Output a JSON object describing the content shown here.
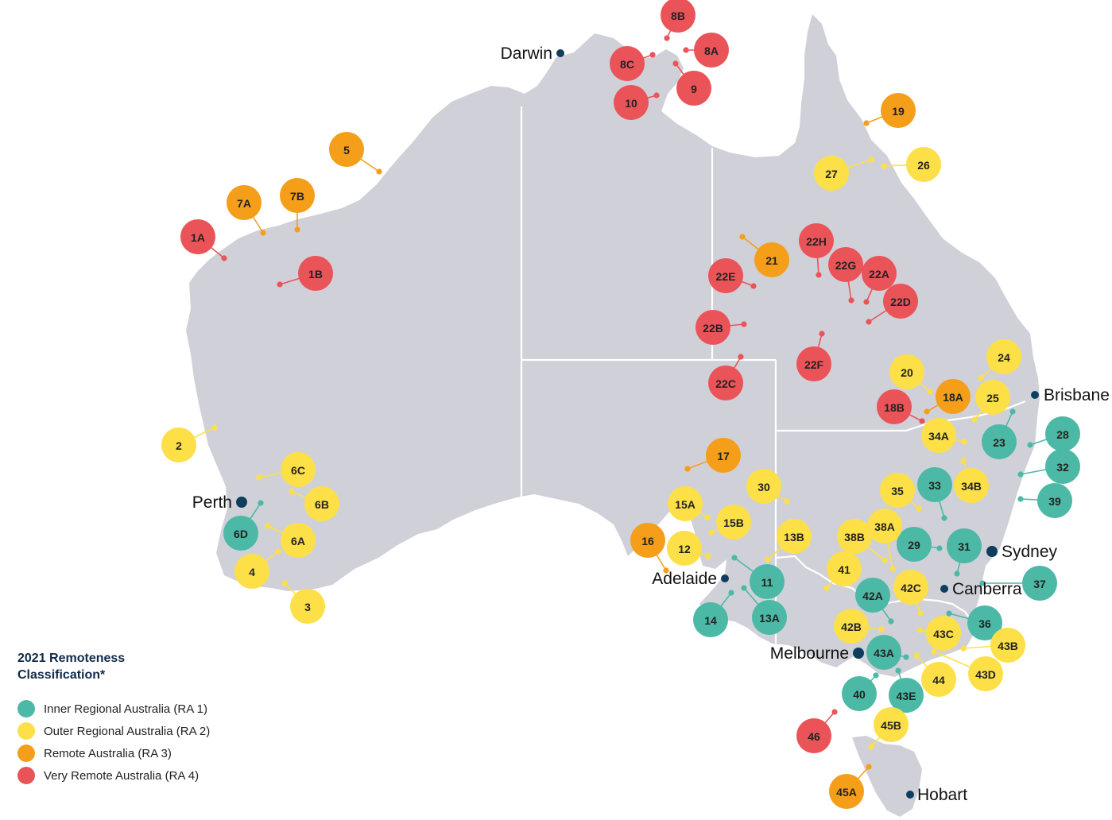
{
  "colors": {
    "ra1": "#4cb9a6",
    "ra2": "#fde047",
    "ra3": "#f59e1a",
    "ra4": "#ea5459",
    "city": "#0f3d5e",
    "land": "#d0d0d8"
  },
  "legend": {
    "title_line1": "2021 Remoteness",
    "title_line2": "Classification*",
    "items": [
      {
        "class": "ra1",
        "label": "Inner Regional Australia (RA 1)"
      },
      {
        "class": "ra2",
        "label": "Outer Regional Australia (RA 2)"
      },
      {
        "class": "ra3",
        "label": "Remote Australia (RA 3)"
      },
      {
        "class": "ra4",
        "label": "Very Remote Australia (RA 4)"
      }
    ]
  },
  "cities": [
    "Darwin",
    "Perth",
    "Adelaide",
    "Brisbane",
    "Sydney",
    "Canberra",
    "Melbourne",
    "Hobart"
  ],
  "sites": [
    {
      "id": "1A",
      "class": "ra4"
    },
    {
      "id": "1B",
      "class": "ra4"
    },
    {
      "id": "2",
      "class": "ra2"
    },
    {
      "id": "3",
      "class": "ra2"
    },
    {
      "id": "4",
      "class": "ra2"
    },
    {
      "id": "5",
      "class": "ra3"
    },
    {
      "id": "6A",
      "class": "ra2"
    },
    {
      "id": "6B",
      "class": "ra2"
    },
    {
      "id": "6C",
      "class": "ra2"
    },
    {
      "id": "6D",
      "class": "ra1"
    },
    {
      "id": "7A",
      "class": "ra3"
    },
    {
      "id": "7B",
      "class": "ra3"
    },
    {
      "id": "8A",
      "class": "ra4"
    },
    {
      "id": "8B",
      "class": "ra4"
    },
    {
      "id": "8C",
      "class": "ra4"
    },
    {
      "id": "9",
      "class": "ra4"
    },
    {
      "id": "10",
      "class": "ra4"
    },
    {
      "id": "11",
      "class": "ra1"
    },
    {
      "id": "12",
      "class": "ra2"
    },
    {
      "id": "13A",
      "class": "ra1"
    },
    {
      "id": "13B",
      "class": "ra2"
    },
    {
      "id": "14",
      "class": "ra1"
    },
    {
      "id": "15A",
      "class": "ra2"
    },
    {
      "id": "15B",
      "class": "ra2"
    },
    {
      "id": "16",
      "class": "ra3"
    },
    {
      "id": "17",
      "class": "ra3"
    },
    {
      "id": "18A",
      "class": "ra3"
    },
    {
      "id": "18B",
      "class": "ra4"
    },
    {
      "id": "19",
      "class": "ra3"
    },
    {
      "id": "20",
      "class": "ra2"
    },
    {
      "id": "21",
      "class": "ra3"
    },
    {
      "id": "22A",
      "class": "ra4"
    },
    {
      "id": "22B",
      "class": "ra4"
    },
    {
      "id": "22C",
      "class": "ra4"
    },
    {
      "id": "22D",
      "class": "ra4"
    },
    {
      "id": "22E",
      "class": "ra4"
    },
    {
      "id": "22F",
      "class": "ra4"
    },
    {
      "id": "22G",
      "class": "ra4"
    },
    {
      "id": "22H",
      "class": "ra4"
    },
    {
      "id": "23",
      "class": "ra1"
    },
    {
      "id": "24",
      "class": "ra2"
    },
    {
      "id": "25",
      "class": "ra2"
    },
    {
      "id": "26",
      "class": "ra2"
    },
    {
      "id": "27",
      "class": "ra2"
    },
    {
      "id": "28",
      "class": "ra1"
    },
    {
      "id": "29",
      "class": "ra1"
    },
    {
      "id": "30",
      "class": "ra2"
    },
    {
      "id": "31",
      "class": "ra1"
    },
    {
      "id": "32",
      "class": "ra1"
    },
    {
      "id": "33",
      "class": "ra1"
    },
    {
      "id": "34A",
      "class": "ra2"
    },
    {
      "id": "34B",
      "class": "ra2"
    },
    {
      "id": "35",
      "class": "ra2"
    },
    {
      "id": "36",
      "class": "ra1"
    },
    {
      "id": "37",
      "class": "ra1"
    },
    {
      "id": "38A",
      "class": "ra2"
    },
    {
      "id": "38B",
      "class": "ra2"
    },
    {
      "id": "39",
      "class": "ra1"
    },
    {
      "id": "40",
      "class": "ra1"
    },
    {
      "id": "41",
      "class": "ra2"
    },
    {
      "id": "42A",
      "class": "ra1"
    },
    {
      "id": "42B",
      "class": "ra2"
    },
    {
      "id": "42C",
      "class": "ra2"
    },
    {
      "id": "43A",
      "class": "ra1"
    },
    {
      "id": "43B",
      "class": "ra2"
    },
    {
      "id": "43C",
      "class": "ra2"
    },
    {
      "id": "43D",
      "class": "ra2"
    },
    {
      "id": "43E",
      "class": "ra1"
    },
    {
      "id": "44",
      "class": "ra2"
    },
    {
      "id": "45A",
      "class": "ra3"
    },
    {
      "id": "45B",
      "class": "ra2"
    },
    {
      "id": "46",
      "class": "ra4"
    }
  ]
}
